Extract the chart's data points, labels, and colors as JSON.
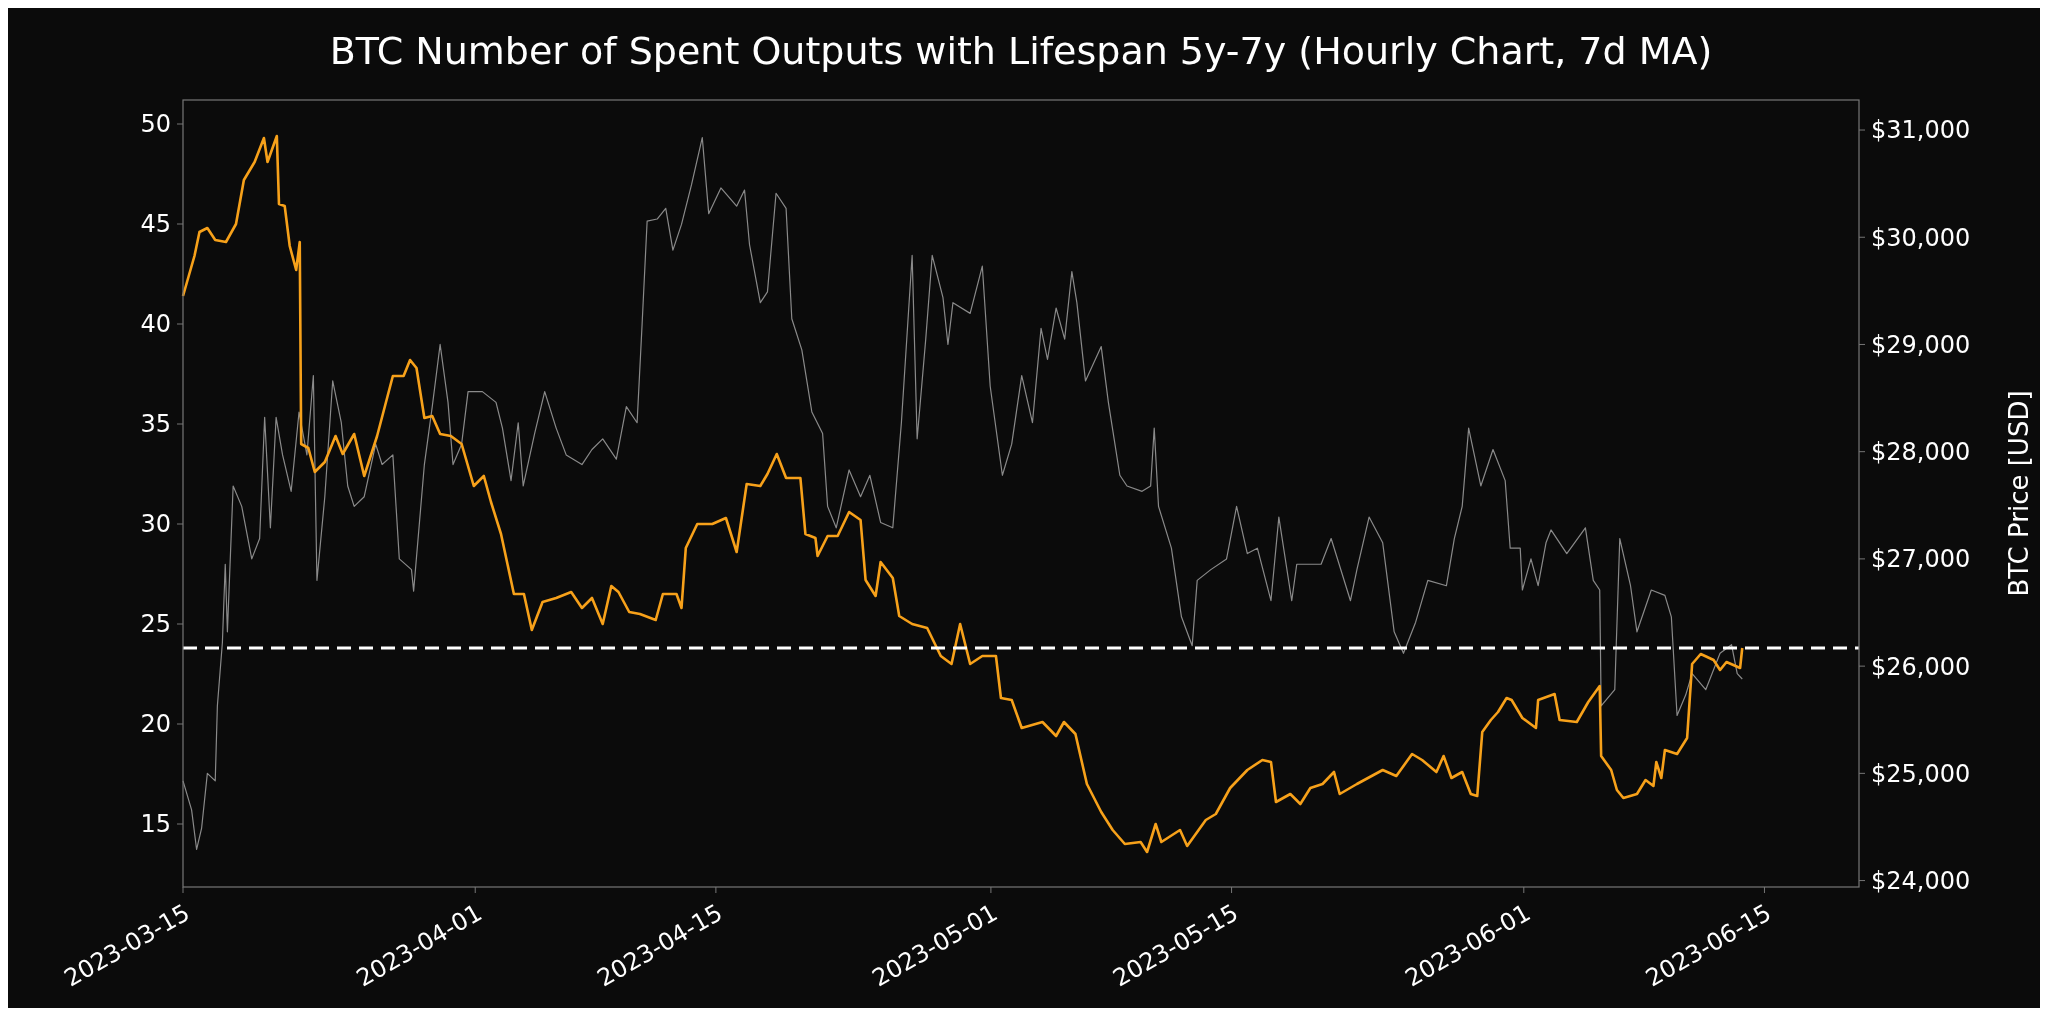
{
  "chart_data": {
    "type": "line",
    "title": "BTC Number of Spent Outputs with Lifespan 5y-7y (Hourly Chart, 7d MA)",
    "y2label": "BTC Price [USD]",
    "xlim": [
      "2023-03-15",
      "2023-06-20T12:00"
    ],
    "xticks": [
      "2023-03-15",
      "2023-04-01",
      "2023-04-15",
      "2023-05-01",
      "2023-05-15",
      "2023-06-01",
      "2023-06-15"
    ],
    "ylim": [
      11.85,
      51.2
    ],
    "yticks": [
      15,
      20,
      25,
      30,
      35,
      40,
      45,
      50
    ],
    "y2lim": [
      23940,
      31280
    ],
    "y2ticks": [
      {
        "value": 24000,
        "label": "$24,000"
      },
      {
        "value": 25000,
        "label": "$25,000"
      },
      {
        "value": 26000,
        "label": "$26,000"
      },
      {
        "value": 27000,
        "label": "$27,000"
      },
      {
        "value": 28000,
        "label": "$28,000"
      },
      {
        "value": 29000,
        "label": "$29,000"
      },
      {
        "value": 30000,
        "label": "$30,000"
      },
      {
        "value": 31000,
        "label": "$31,000"
      }
    ],
    "grid": false,
    "ref_lines": [
      {
        "axis": "y",
        "value": 23.8,
        "color": "#ffffff",
        "line_style": "dashed"
      }
    ],
    "series": [
      {
        "axis": "y2",
        "color": "#8a8a8a",
        "x": [
          "2023-03-15T00:00",
          "2023-03-15T12:00",
          "2023-03-15T19:00",
          "2023-03-16T02:00",
          "2023-03-16T10:00",
          "2023-03-16T21:00",
          "2023-03-17T00:00",
          "2023-03-17T07:00",
          "2023-03-17T11:00",
          "2023-03-17T14:00",
          "2023-03-17T22:00",
          "2023-03-18T10:00",
          "2023-03-19T00:00",
          "2023-03-19T11:00",
          "2023-03-19T18:00",
          "2023-03-20T02:00",
          "2023-03-20T10:00",
          "2023-03-20T19:00",
          "2023-03-21T07:00",
          "2023-03-21T18:00",
          "2023-03-22T05:00",
          "2023-03-22T14:00",
          "2023-03-22T19:00",
          "2023-03-23T06:00",
          "2023-03-23T17:00",
          "2023-03-24T05:00",
          "2023-03-24T14:00",
          "2023-03-24T23:00",
          "2023-03-25T13:00",
          "2023-03-26T05:00",
          "2023-03-26T14:00",
          "2023-03-27T05:00",
          "2023-03-27T14:00",
          "2023-03-28T07:00",
          "2023-03-28T10:00",
          "2023-03-29T01:00",
          "2023-03-29T12:00",
          "2023-03-29T23:00",
          "2023-03-30T10:00",
          "2023-03-30T17:00",
          "2023-03-31T05:00",
          "2023-03-31T14:00",
          "2023-04-01T10:00",
          "2023-04-02T05:00",
          "2023-04-02T14:00",
          "2023-04-03T02:00",
          "2023-04-03T12:00",
          "2023-04-03T19:00",
          "2023-04-04T11:00",
          "2023-04-05T01:00",
          "2023-04-05T17:00",
          "2023-04-06T07:00",
          "2023-04-07T05:00",
          "2023-04-07T19:00",
          "2023-04-08T10:00",
          "2023-04-09T05:00",
          "2023-04-09T19:00",
          "2023-04-10T10:00",
          "2023-04-10T17:00",
          "2023-04-11T00:00",
          "2023-04-11T14:00",
          "2023-04-12T02:00",
          "2023-04-12T12:00",
          "2023-04-13T00:00",
          "2023-04-13T14:00",
          "2023-04-14T05:00",
          "2023-04-14T14:00",
          "2023-04-15T07:00",
          "2023-04-16T05:00",
          "2023-04-16T16:00",
          "2023-04-16T23:00",
          "2023-04-17T14:00",
          "2023-04-18T00:00",
          "2023-04-18T12:00",
          "2023-04-19T02:00",
          "2023-04-19T10:00",
          "2023-04-20T00:00",
          "2023-04-20T14:00",
          "2023-04-21T05:00",
          "2023-04-21T12:00",
          "2023-04-22T00:00",
          "2023-04-22T18:00",
          "2023-04-23T10:00",
          "2023-04-23T23:00",
          "2023-04-24T14:00",
          "2023-04-25T07:00",
          "2023-04-25T19:00",
          "2023-04-26T10:00",
          "2023-04-26T17:00",
          "2023-04-27T05:00",
          "2023-04-27T14:00",
          "2023-04-28T05:00",
          "2023-04-28T12:00",
          "2023-04-28T19:00",
          "2023-04-29T19:00",
          "2023-04-30T12:00",
          "2023-04-30T23:00",
          "2023-05-01T16:00",
          "2023-05-02T05:00",
          "2023-05-02T19:00",
          "2023-05-03T10:00",
          "2023-05-03T22:00",
          "2023-05-04T07:00",
          "2023-05-04T19:00",
          "2023-05-05T07:00",
          "2023-05-05T17:00",
          "2023-05-06T00:00",
          "2023-05-06T12:00",
          "2023-05-07T10:00",
          "2023-05-07T20:00",
          "2023-05-08T12:00",
          "2023-05-08T22:00",
          "2023-05-09T19:00",
          "2023-05-10T07:00",
          "2023-05-10T12:00",
          "2023-05-10T18:00",
          "2023-05-11T12:00",
          "2023-05-12T02:00",
          "2023-05-12T17:00",
          "2023-05-13T00:00",
          "2023-05-13T19:00",
          "2023-05-14T17:00",
          "2023-05-15T07:00",
          "2023-05-15T22:00",
          "2023-05-16T12:00",
          "2023-05-17T07:00",
          "2023-05-17T18:00",
          "2023-05-18T12:00",
          "2023-05-18T19:00",
          "2023-05-20T05:00",
          "2023-05-20T19:00",
          "2023-05-21T22:00",
          "2023-05-22T07:00",
          "2023-05-23T00:00",
          "2023-05-23T19:00",
          "2023-05-24T11:00",
          "2023-05-25T00:00",
          "2023-05-25T17:00",
          "2023-05-26T10:00",
          "2023-05-27T12:00",
          "2023-05-27T23:00",
          "2023-05-28T10:00",
          "2023-05-28T19:00",
          "2023-05-29T12:00",
          "2023-05-30T05:00",
          "2023-05-30T22:00",
          "2023-05-31T05:00",
          "2023-05-31T19:00",
          "2023-05-31T22:00",
          "2023-06-01T10:00",
          "2023-06-01T20:00",
          "2023-06-02T07:00",
          "2023-06-02T14:00",
          "2023-06-03T12:00",
          "2023-06-04T14:00",
          "2023-06-05T01:00",
          "2023-06-05T10:00",
          "2023-06-05T12:00",
          "2023-06-06T07:00",
          "2023-06-06T14:00",
          "2023-06-07T05:00",
          "2023-06-07T14:00",
          "2023-06-08T10:00",
          "2023-06-09T05:00",
          "2023-06-09T14:00",
          "2023-06-09T22:00",
          "2023-06-10T10:00",
          "2023-06-10T19:00",
          "2023-06-11T14:00",
          "2023-06-12T10:00",
          "2023-06-13T02:00",
          "2023-06-13T10:00",
          "2023-06-13T17:00"
        ],
        "values": [
          24930,
          24660,
          24290,
          24490,
          25000,
          24930,
          25630,
          26220,
          26950,
          26320,
          27680,
          27490,
          27000,
          27190,
          28320,
          27290,
          28320,
          27970,
          27630,
          28370,
          27970,
          28710,
          26800,
          27580,
          28660,
          28270,
          27680,
          27490,
          27580,
          28070,
          27880,
          27970,
          27000,
          26900,
          26700,
          27880,
          28420,
          29000,
          28460,
          27880,
          28070,
          28560,
          28560,
          28460,
          28220,
          27730,
          28270,
          27680,
          28170,
          28560,
          28220,
          27970,
          27880,
          28020,
          28120,
          27930,
          28420,
          28270,
          29190,
          30150,
          30170,
          30270,
          29880,
          30120,
          30490,
          30930,
          30220,
          30460,
          30290,
          30440,
          29930,
          29390,
          29490,
          30410,
          30270,
          29240,
          28950,
          28370,
          28170,
          27490,
          27290,
          27830,
          27580,
          27780,
          27340,
          27290,
          28270,
          29830,
          28120,
          29050,
          29830,
          29440,
          29000,
          29390,
          29290,
          29730,
          28610,
          27780,
          28070,
          28710,
          28270,
          29150,
          28860,
          29340,
          29050,
          29680,
          29390,
          28660,
          28980,
          28460,
          27780,
          27680,
          27630,
          27680,
          28220,
          27490,
          27100,
          26460,
          26190,
          26800,
          26900,
          27000,
          27490,
          27050,
          27100,
          26610,
          27390,
          26610,
          26950,
          26950,
          27190,
          26610,
          26900,
          27390,
          27150,
          26320,
          26120,
          26410,
          26800,
          26750,
          27190,
          27490,
          28220,
          27680,
          28020,
          27730,
          27100,
          27100,
          26710,
          27000,
          26750,
          27150,
          27270,
          27050,
          27290,
          26800,
          26710,
          25630,
          25780,
          27190,
          26750,
          26320,
          26710,
          26660,
          26460,
          25540,
          25730,
          25930,
          25780,
          26120,
          26200,
          25930,
          25880
        ]
      },
      {
        "color": "#f7a11a",
        "x": [
          "2023-03-15T00:00",
          "2023-03-15T08:00",
          "2023-03-15T16:00",
          "2023-03-15T23:00",
          "2023-03-16T10:00",
          "2023-03-16T21:00",
          "2023-03-17T12:00",
          "2023-03-18T02:00",
          "2023-03-18T13:00",
          "2023-03-19T04:00",
          "2023-03-19T17:00",
          "2023-03-19T22:00",
          "2023-03-20T11:00",
          "2023-03-20T14:00",
          "2023-03-20T22:00",
          "2023-03-21T05:00",
          "2023-03-21T14:00",
          "2023-03-21T19:00",
          "2023-03-21T21:00",
          "2023-03-22T07:00",
          "2023-03-22T16:00",
          "2023-03-23T06:00",
          "2023-03-23T21:00",
          "2023-03-24T07:00",
          "2023-03-24T23:00",
          "2023-03-25T13:00",
          "2023-03-26T07:00",
          "2023-03-27T05:00",
          "2023-03-27T20:00",
          "2023-03-28T05:00",
          "2023-03-28T14:00",
          "2023-03-29T01:00",
          "2023-03-29T12:00",
          "2023-03-29T23:00",
          "2023-03-30T14:00",
          "2023-03-31T05:00",
          "2023-03-31T22:00",
          "2023-04-01T12:00",
          "2023-04-01T22:00",
          "2023-04-02T12:00",
          "2023-04-03T06:00",
          "2023-04-03T20:00",
          "2023-04-04T07:00",
          "2023-04-04T22:00",
          "2023-04-05T17:00",
          "2023-04-06T14:00",
          "2023-04-07T05:00",
          "2023-04-07T19:00",
          "2023-04-08T10:00",
          "2023-04-08T22:00",
          "2023-04-09T08:00",
          "2023-04-09T23:00",
          "2023-04-10T14:00",
          "2023-04-11T12:00",
          "2023-04-11T22:00",
          "2023-04-12T17:00",
          "2023-04-13T00:00",
          "2023-04-13T06:00",
          "2023-04-13T22:00",
          "2023-04-14T19:00",
          "2023-04-15T14:00",
          "2023-04-16T05:00",
          "2023-04-16T19:00",
          "2023-04-17T14:00",
          "2023-04-18T00:00",
          "2023-04-18T13:00",
          "2023-04-19T02:00",
          "2023-04-19T22:00",
          "2023-04-20T05:00",
          "2023-04-20T19:00",
          "2023-04-20T22:00",
          "2023-04-21T12:00",
          "2023-04-22T02:00",
          "2023-04-22T18:00",
          "2023-04-23T10:00",
          "2023-04-23T17:00",
          "2023-04-24T07:00",
          "2023-04-24T14:00",
          "2023-04-25T07:00",
          "2023-04-25T16:00",
          "2023-04-26T10:00",
          "2023-04-27T07:00",
          "2023-04-28T02:00",
          "2023-04-28T17:00",
          "2023-04-29T05:00",
          "2023-04-29T19:00",
          "2023-04-30T12:00",
          "2023-05-01T07:00",
          "2023-05-01T14:00",
          "2023-05-02T05:00",
          "2023-05-02T19:00",
          "2023-05-04T00:00",
          "2023-05-04T19:00",
          "2023-05-05T06:00",
          "2023-05-05T22:00",
          "2023-05-06T14:00",
          "2023-05-07T10:00",
          "2023-05-08T02:00",
          "2023-05-08T19:00",
          "2023-05-09T17:00",
          "2023-05-10T02:00",
          "2023-05-10T14:00",
          "2023-05-10T22:00",
          "2023-05-12T00:00",
          "2023-05-12T10:00",
          "2023-05-13T12:00",
          "2023-05-14T02:00",
          "2023-05-14T22:00",
          "2023-05-15T22:00",
          "2023-05-16T19:00",
          "2023-05-17T07:00",
          "2023-05-17T14:00",
          "2023-05-18T10:00",
          "2023-05-19T00:00",
          "2023-05-19T14:00",
          "2023-05-20T07:00",
          "2023-05-20T23:00",
          "2023-05-21T07:00",
          "2023-05-22T07:00",
          "2023-05-23T19:00",
          "2023-05-24T14:00",
          "2023-05-25T12:00",
          "2023-05-26T02:00",
          "2023-05-26T22:00",
          "2023-05-27T08:00",
          "2023-05-27T19:00",
          "2023-05-28T10:00",
          "2023-05-28T22:00",
          "2023-05-29T07:00",
          "2023-05-29T14:00",
          "2023-05-30T02:00",
          "2023-05-30T12:00",
          "2023-05-31T00:00",
          "2023-05-31T07:00",
          "2023-05-31T22:00",
          "2023-06-01T17:00",
          "2023-06-01T20:00",
          "2023-06-02T19:00",
          "2023-06-03T02:00",
          "2023-06-04T02:00",
          "2023-06-04T18:00",
          "2023-06-05T10:00",
          "2023-06-05T12:00",
          "2023-06-06T02:00",
          "2023-06-06T10:00",
          "2023-06-06T19:00",
          "2023-06-07T14:00",
          "2023-06-08T02:00",
          "2023-06-08T13:00",
          "2023-06-08T17:00",
          "2023-06-09T00:00",
          "2023-06-09T05:00",
          "2023-06-09T22:00",
          "2023-06-10T12:00",
          "2023-06-10T19:00",
          "2023-06-11T07:00",
          "2023-06-12T01:00",
          "2023-06-12T10:00",
          "2023-06-12T19:00",
          "2023-06-13T14:00",
          "2023-06-13T17:00"
        ],
        "values": [
          41.4,
          42.4,
          43.4,
          44.6,
          44.8,
          44.2,
          44.1,
          45.0,
          47.2,
          48.1,
          49.3,
          48.1,
          49.4,
          46.0,
          45.9,
          43.9,
          42.7,
          44.1,
          34.0,
          33.8,
          32.6,
          33.1,
          34.4,
          33.5,
          34.5,
          32.4,
          34.4,
          37.4,
          37.4,
          38.2,
          37.8,
          35.3,
          35.4,
          34.5,
          34.4,
          34.0,
          31.9,
          32.4,
          31.1,
          29.5,
          26.5,
          26.5,
          24.7,
          26.1,
          26.3,
          26.6,
          25.8,
          26.3,
          25.0,
          26.9,
          26.6,
          25.6,
          25.5,
          25.2,
          26.5,
          26.5,
          25.8,
          28.8,
          30.0,
          30.0,
          30.3,
          28.6,
          32.0,
          31.9,
          32.5,
          33.5,
          32.3,
          32.3,
          29.5,
          29.3,
          28.4,
          29.4,
          29.4,
          30.6,
          30.2,
          27.2,
          26.4,
          28.1,
          27.3,
          25.4,
          25.0,
          24.8,
          23.4,
          23.0,
          25.0,
          23.0,
          23.4,
          23.4,
          21.3,
          21.2,
          19.8,
          20.1,
          19.4,
          20.1,
          19.5,
          17.0,
          15.6,
          14.7,
          14.0,
          14.1,
          13.6,
          15.0,
          14.1,
          14.7,
          13.9,
          15.2,
          15.5,
          16.8,
          17.7,
          18.2,
          18.1,
          16.1,
          16.5,
          16.0,
          16.8,
          17.0,
          17.6,
          16.5,
          17.0,
          17.7,
          17.4,
          18.5,
          18.2,
          17.6,
          18.4,
          17.3,
          17.6,
          16.5,
          16.4,
          19.6,
          20.2,
          20.6,
          21.3,
          21.2,
          20.3,
          19.8,
          21.2,
          21.5,
          20.2,
          20.1,
          21.1,
          21.9,
          18.4,
          17.7,
          16.7,
          16.3,
          16.5,
          17.2,
          16.9,
          18.1,
          17.3,
          18.7,
          18.5,
          19.3,
          23.0,
          23.5,
          23.2,
          22.7,
          23.1,
          22.8,
          23.8
        ]
      }
    ]
  }
}
